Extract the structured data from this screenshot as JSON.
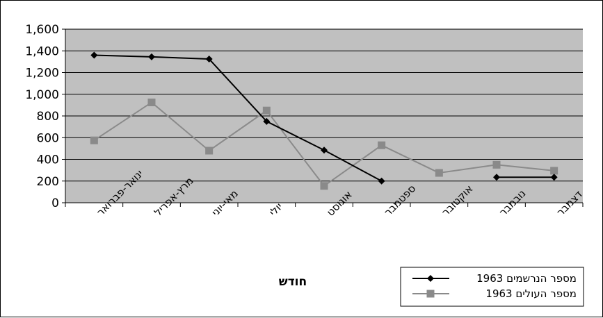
{
  "chart_data": {
    "type": "line",
    "title": "",
    "xlabel": "חודש",
    "ylabel": "",
    "ylim": [
      0,
      1600
    ],
    "yticks": [
      0,
      200,
      400,
      600,
      800,
      1000,
      1200,
      1400,
      1600
    ],
    "ytick_labels": [
      "0",
      "200",
      "400",
      "600",
      "800",
      "1,000",
      "1,200",
      "1,400",
      "1,600"
    ],
    "grid": true,
    "legend_position": "bottom-right",
    "categories": [
      "ינואר-פברואר",
      "מרץ-אפריל",
      "מאי-יוני",
      "יולי",
      "אוגוסט",
      "ספטמבר",
      "אוקטובר",
      "נובמבר",
      "דצמבר"
    ],
    "series": [
      {
        "name": "מספר הנרשמים 1963",
        "color": "#000000",
        "marker": "diamond",
        "values": [
          1360,
          1345,
          1325,
          750,
          485,
          200,
          null,
          235,
          235
        ]
      },
      {
        "name": "מספר העולים 1963",
        "color": "#8a8a8a",
        "marker": "square",
        "values": [
          575,
          925,
          480,
          850,
          155,
          530,
          275,
          350,
          295
        ]
      }
    ]
  },
  "colors": {
    "plot_background": "#c0c0c0",
    "gridline": "#000000"
  }
}
